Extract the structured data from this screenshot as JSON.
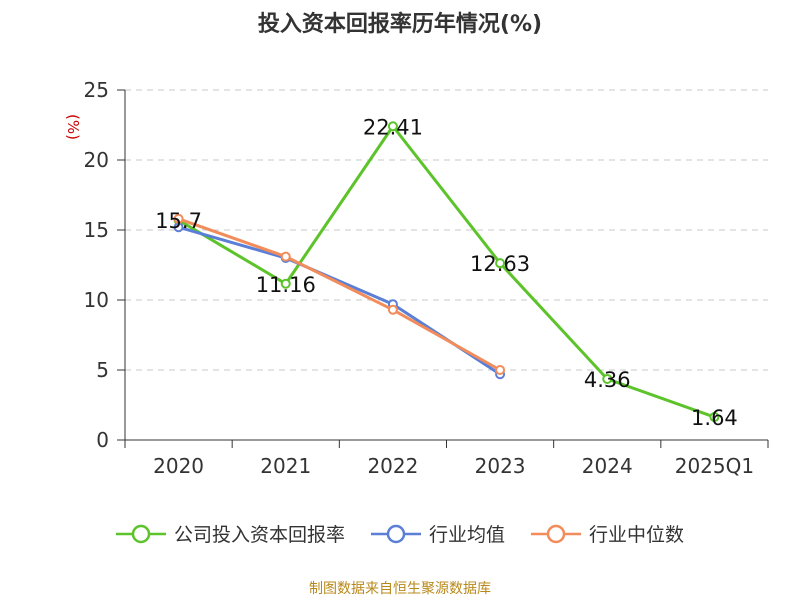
{
  "title": "投入资本回报率历年情况(%)",
  "source": "制图数据来自恒生聚源数据库",
  "colors": {
    "company": "#5cc32a",
    "industry_avg": "#5b7fd6",
    "industry_median": "#f28c5a",
    "grid": "#c8c8c8",
    "axis": "#333333",
    "ylabel": "#cc0000"
  },
  "chart_data": {
    "type": "line",
    "title": "投入资本回报率历年情况(%)",
    "xlabel": "",
    "ylabel": "(%)",
    "categories": [
      "2020",
      "2021",
      "2022",
      "2023",
      "2024",
      "2025Q1"
    ],
    "ylim": [
      0,
      25
    ],
    "yticks": [
      0,
      5,
      10,
      15,
      20,
      25
    ],
    "grid": true,
    "legend_position": "bottom",
    "series": [
      {
        "name": "公司投入资本回报率",
        "color": "#5cc32a",
        "values": [
          15.7,
          11.16,
          22.41,
          12.63,
          4.36,
          1.64
        ],
        "labels": [
          "15.7",
          "11.16",
          "22.41",
          "12.63",
          "4.36",
          "1.64"
        ]
      },
      {
        "name": "行业均值",
        "color": "#5b7fd6",
        "values": [
          15.2,
          13.0,
          9.7,
          4.7,
          null,
          null
        ]
      },
      {
        "name": "行业中位数",
        "color": "#f28c5a",
        "values": [
          15.8,
          13.1,
          9.3,
          5.0,
          null,
          null
        ]
      }
    ]
  }
}
